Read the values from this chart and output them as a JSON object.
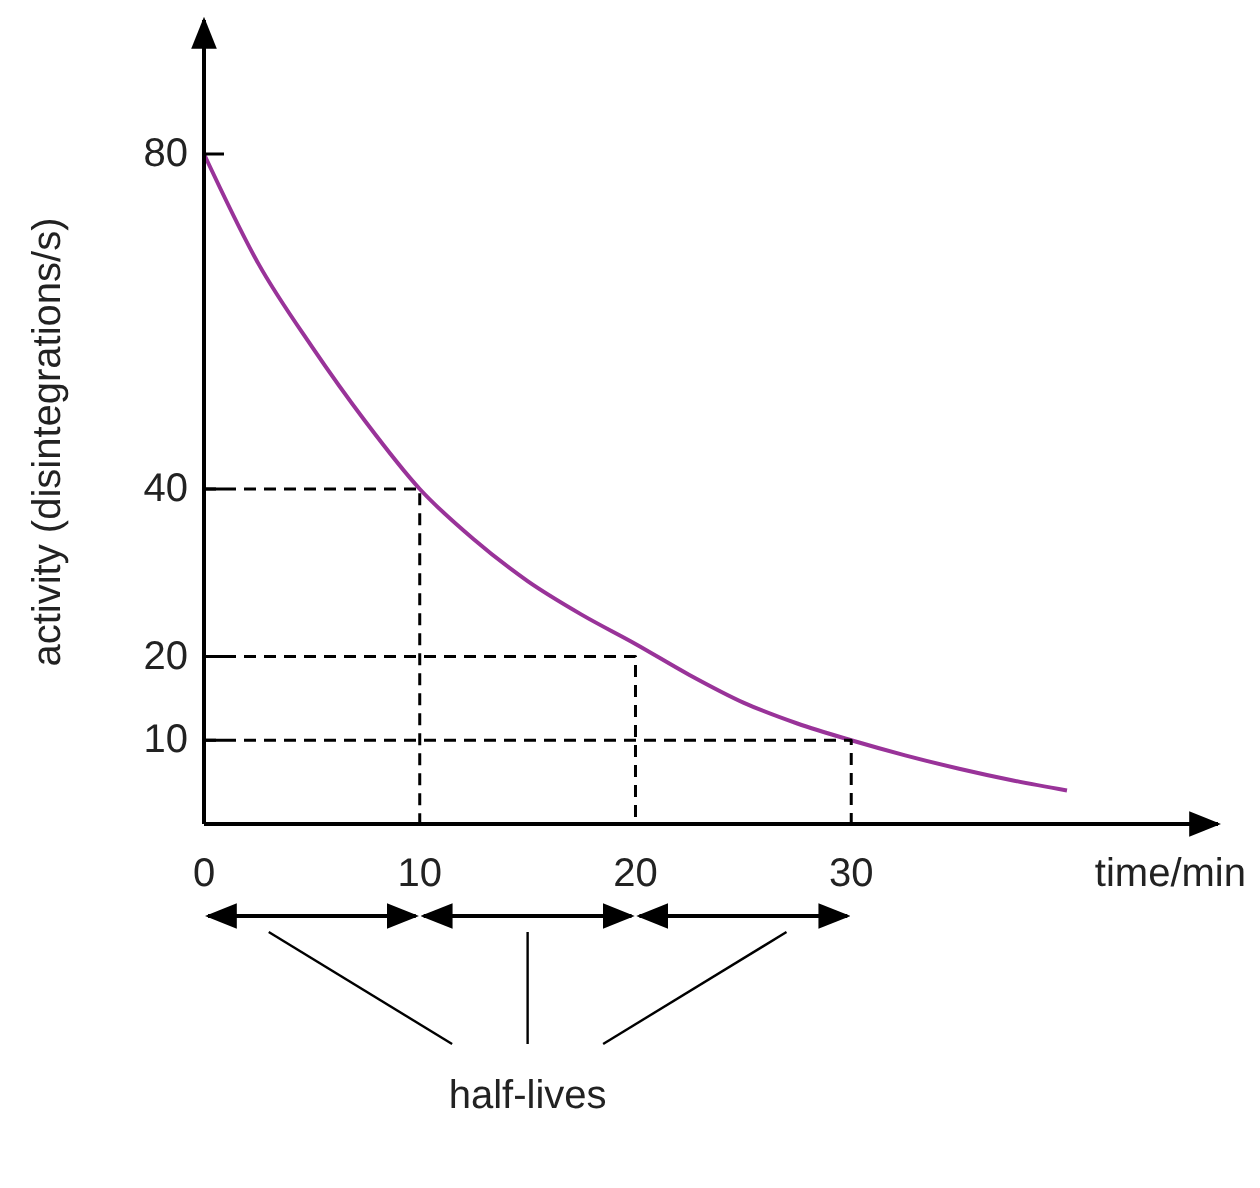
{
  "chart_data": {
    "type": "line",
    "xlabel": "time/min",
    "ylabel": "activity (disintegrations/s)",
    "xlim": [
      0,
      47
    ],
    "ylim": [
      0,
      96
    ],
    "xticks": [
      0,
      10,
      20,
      30
    ],
    "yticks": [
      10,
      20,
      40,
      80
    ],
    "grid": false,
    "annotations": [
      "half-lives"
    ],
    "series": [
      {
        "color": "#993399",
        "x": [
          0,
          2.5,
          5,
          7.5,
          10,
          12.5,
          15,
          17.5,
          20,
          22.5,
          25,
          27.5,
          30,
          32.5,
          35,
          37.5,
          40
        ],
        "values": [
          80,
          67,
          57,
          48,
          40,
          34,
          29,
          25,
          21.5,
          17.8,
          14.5,
          12,
          10,
          8.2,
          6.6,
          5.2,
          4
        ]
      },
      {
        "type": "line",
        "line_style": "dashed",
        "color": "#000000",
        "x": [
          0,
          10,
          10
        ],
        "values": [
          40,
          40,
          0
        ]
      },
      {
        "type": "line",
        "line_style": "dashed",
        "color": "#000000",
        "x": [
          0,
          20,
          20
        ],
        "values": [
          20,
          20,
          0
        ]
      },
      {
        "type": "line",
        "line_style": "dashed",
        "color": "#000000",
        "x": [
          0,
          30,
          30
        ],
        "values": [
          10,
          10,
          0
        ]
      }
    ]
  }
}
